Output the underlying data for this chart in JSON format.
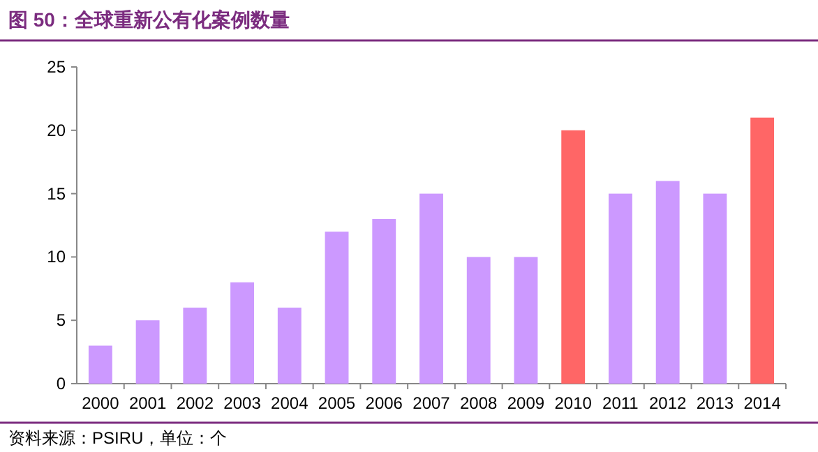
{
  "chart_data": {
    "type": "bar",
    "title": "图 50：全球重新公有化案例数量",
    "categories": [
      "2000",
      "2001",
      "2002",
      "2003",
      "2004",
      "2005",
      "2006",
      "2007",
      "2008",
      "2009",
      "2010",
      "2011",
      "2012",
      "2013",
      "2014"
    ],
    "values": [
      3,
      5,
      6,
      8,
      6,
      12,
      13,
      15,
      10,
      10,
      20,
      15,
      16,
      15,
      21
    ],
    "colors": [
      "#cc99ff",
      "#cc99ff",
      "#cc99ff",
      "#cc99ff",
      "#cc99ff",
      "#cc99ff",
      "#cc99ff",
      "#cc99ff",
      "#cc99ff",
      "#cc99ff",
      "#ff6666",
      "#cc99ff",
      "#cc99ff",
      "#cc99ff",
      "#ff6666"
    ],
    "ylim": [
      0,
      25
    ],
    "yticks": [
      0,
      5,
      10,
      15,
      20,
      25
    ],
    "grid": false,
    "annotations": [
      "资料来源：PSIRU，单位：个"
    ]
  }
}
